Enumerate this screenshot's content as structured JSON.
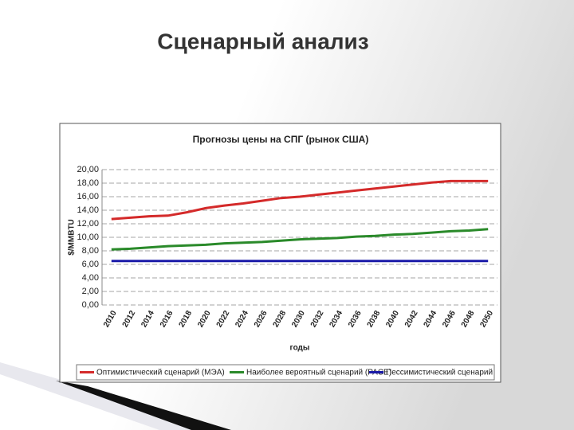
{
  "title": "Сценарный анализ",
  "chart_data": {
    "type": "line",
    "title": "Прогнозы цены на СПГ (рынок США)",
    "y_label": "$/MMBTU",
    "x_label": "годы",
    "categories": [
      "2010",
      "2012",
      "2014",
      "2016",
      "2018",
      "2020",
      "2022",
      "2024",
      "2026",
      "2028",
      "2030",
      "2032",
      "2034",
      "2036",
      "2038",
      "2040",
      "2042",
      "2044",
      "2046",
      "2048",
      "2050"
    ],
    "series": [
      {
        "name": "Оптимистический сценарий (МЭА)",
        "color": "#d42a2a",
        "values": [
          12.7,
          12.9,
          13.1,
          13.2,
          13.7,
          14.3,
          14.7,
          15.0,
          15.4,
          15.8,
          16.0,
          16.3,
          16.6,
          16.9,
          17.2,
          17.5,
          17.8,
          18.1,
          18.3,
          18.3,
          18.3
        ]
      },
      {
        "name": "Наиболее вероятный сценарий (PACE)",
        "color": "#2a8a2a",
        "values": [
          8.2,
          8.3,
          8.5,
          8.7,
          8.8,
          8.9,
          9.1,
          9.2,
          9.3,
          9.5,
          9.7,
          9.8,
          9.9,
          10.1,
          10.2,
          10.4,
          10.5,
          10.7,
          10.9,
          11.0,
          11.2
        ]
      },
      {
        "name": "Пессимистический сценарий",
        "color": "#1a1aa8",
        "values": [
          6.5,
          6.5,
          6.5,
          6.5,
          6.5,
          6.5,
          6.5,
          6.5,
          6.5,
          6.5,
          6.5,
          6.5,
          6.5,
          6.5,
          6.5,
          6.5,
          6.5,
          6.5,
          6.5,
          6.5,
          6.5
        ]
      }
    ],
    "ylim": [
      0,
      20
    ],
    "yticks": [
      {
        "value": 0,
        "label": "0,00"
      },
      {
        "value": 2,
        "label": "2,00"
      },
      {
        "value": 4,
        "label": "4,00"
      },
      {
        "value": 6,
        "label": "6,00"
      },
      {
        "value": 8,
        "label": "8,00"
      },
      {
        "value": 10,
        "label": "10,00"
      },
      {
        "value": 12,
        "label": "12,00"
      },
      {
        "value": 14,
        "label": "14,00"
      },
      {
        "value": 16,
        "label": "16,00"
      },
      {
        "value": 18,
        "label": "18,00"
      },
      {
        "value": 20,
        "label": "20,00"
      }
    ],
    "grid": true,
    "legend": "bottom"
  }
}
